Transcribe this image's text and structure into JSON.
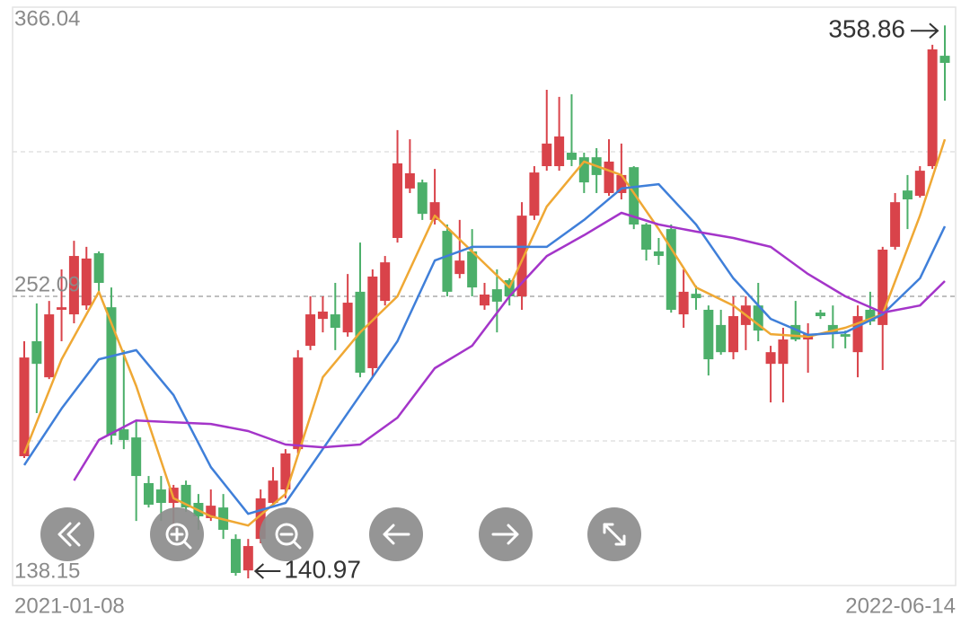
{
  "chart_data": {
    "type": "candlestick",
    "yticks": [
      138.15,
      252.09,
      366.04
    ],
    "minor_grid": [
      195.12,
      309.06
    ],
    "ylim": [
      138.15,
      366.04
    ],
    "up_color": "#d9434a",
    "down_color": "#4caf6a",
    "categories": [
      "2021-01-08",
      null,
      null,
      null,
      null,
      null,
      null,
      null,
      null,
      null,
      null,
      null,
      null,
      null,
      null,
      null,
      null,
      null,
      null,
      null,
      null,
      null,
      null,
      null,
      null,
      null,
      null,
      null,
      null,
      null,
      null,
      null,
      null,
      null,
      null,
      null,
      null,
      null,
      null,
      null,
      null,
      null,
      null,
      null,
      null,
      null,
      null,
      null,
      null,
      null,
      null,
      null,
      null,
      null,
      null,
      null,
      null,
      null,
      null,
      null,
      null,
      null,
      null,
      null,
      null,
      null,
      null,
      null,
      null,
      null,
      null,
      null,
      null,
      null,
      "2022-06-14"
    ],
    "ohlc": [
      [
        189.1,
        234.4,
        188.4,
        228.0
      ],
      [
        234.4,
        249.3,
        206.1,
        225.5
      ],
      [
        220.2,
        250.3,
        219.5,
        245.0
      ],
      [
        246.8,
        262.7,
        234.4,
        247.8
      ],
      [
        245.0,
        274.0,
        241.5,
        268.0
      ],
      [
        248.5,
        271.6,
        246.8,
        267.0
      ],
      [
        269.1,
        269.8,
        253.9,
        257.4
      ],
      [
        247.8,
        255.6,
        193.7,
        197.2
      ],
      [
        199.7,
        230.9,
        191.9,
        195.5
      ],
      [
        196.5,
        203.2,
        163.6,
        181.3
      ],
      [
        178.5,
        181.3,
        168.9,
        170.0
      ],
      [
        176.0,
        181.3,
        163.6,
        170.7
      ],
      [
        170.7,
        177.8,
        160.1,
        176.7
      ],
      [
        177.8,
        179.5,
        167.2,
        168.9
      ],
      [
        170.7,
        174.2,
        160.1,
        165.4
      ],
      [
        164.7,
        176.0,
        163.6,
        169.6
      ],
      [
        168.9,
        174.2,
        156.5,
        160.1
      ],
      [
        156.5,
        158.3,
        142.0,
        143.1
      ],
      [
        144.1,
        156.5,
        140.97,
        153.7
      ],
      [
        156.5,
        176.0,
        154.8,
        172.5
      ],
      [
        170.7,
        184.8,
        168.9,
        179.5
      ],
      [
        176.0,
        191.9,
        172.5,
        190.2
      ],
      [
        191.9,
        230.9,
        190.2,
        228.0
      ],
      [
        232.6,
        252.1,
        230.9,
        245.0
      ],
      [
        243.2,
        252.1,
        237.9,
        246.1
      ],
      [
        245.0,
        257.4,
        230.9,
        239.7
      ],
      [
        237.9,
        260.9,
        236.2,
        249.6
      ],
      [
        253.9,
        273.3,
        220.2,
        222.0
      ],
      [
        223.8,
        262.7,
        220.2,
        259.9
      ],
      [
        250.3,
        268.0,
        248.5,
        265.5
      ],
      [
        275.1,
        317.6,
        273.3,
        304.5
      ],
      [
        294.6,
        314.0,
        292.8,
        300.6
      ],
      [
        297.0,
        298.1,
        282.2,
        284.6
      ],
      [
        282.2,
        302.3,
        280.4,
        289.2
      ],
      [
        277.9,
        280.4,
        252.1,
        253.9
      ],
      [
        260.9,
        282.2,
        259.2,
        266.2
      ],
      [
        269.8,
        278.6,
        252.1,
        255.6
      ],
      [
        248.5,
        257.4,
        246.8,
        252.8
      ],
      [
        254.9,
        262.7,
        237.9,
        250.0
      ],
      [
        258.5,
        259.2,
        248.5,
        252.1
      ],
      [
        252.1,
        289.2,
        246.8,
        283.9
      ],
      [
        283.9,
        303.4,
        282.2,
        300.9
      ],
      [
        303.4,
        333.5,
        301.6,
        312.3
      ],
      [
        303.4,
        330.7,
        301.6,
        315.1
      ],
      [
        308.7,
        331.7,
        303.4,
        305.9
      ],
      [
        306.9,
        308.7,
        292.8,
        297.0
      ],
      [
        306.9,
        310.5,
        292.8,
        299.9
      ],
      [
        292.8,
        314.0,
        291.7,
        305.2
      ],
      [
        292.8,
        312.3,
        290.3,
        299.9
      ],
      [
        303.0,
        303.4,
        278.6,
        280.4
      ],
      [
        280.4,
        281.0,
        266.2,
        270.5
      ],
      [
        269.8,
        275.1,
        264.5,
        268.0
      ],
      [
        278.6,
        280.4,
        245.7,
        246.8
      ],
      [
        245.0,
        262.7,
        239.7,
        253.9
      ],
      [
        253.1,
        256.3,
        246.8,
        251.4
      ],
      [
        246.8,
        248.5,
        220.9,
        227.3
      ],
      [
        240.8,
        246.8,
        229.1,
        230.1
      ],
      [
        230.1,
        252.1,
        227.3,
        244.3
      ],
      [
        240.8,
        252.1,
        230.9,
        248.5
      ],
      [
        248.5,
        257.4,
        234.4,
        238.6
      ],
      [
        225.5,
        232.6,
        210.3,
        230.1
      ],
      [
        225.5,
        239.7,
        210.3,
        235.1
      ],
      [
        240.8,
        250.3,
        234.4,
        235.1
      ],
      [
        235.1,
        241.5,
        222.0,
        237.2
      ],
      [
        245.7,
        246.8,
        243.2,
        244.3
      ],
      [
        240.8,
        248.5,
        231.6,
        237.2
      ],
      [
        237.2,
        238.6,
        231.6,
        236.2
      ],
      [
        230.1,
        248.5,
        220.2,
        244.3
      ],
      [
        246.8,
        253.9,
        240.8,
        242.2
      ],
      [
        240.8,
        271.6,
        223.1,
        270.5
      ],
      [
        271.6,
        292.8,
        270.5,
        289.2
      ],
      [
        293.8,
        299.9,
        278.6,
        290.3
      ],
      [
        291.7,
        303.4,
        291.0,
        301.6
      ],
      [
        303.4,
        351.2,
        302.3,
        349.4
      ],
      [
        346.9,
        358.86,
        329.2,
        344.1
      ]
    ],
    "lines": [
      {
        "color": "#efa834",
        "x": [
          0,
          3,
          6,
          9,
          12,
          15,
          18,
          21,
          24,
          27,
          30,
          33,
          36,
          39,
          42,
          45,
          48,
          51,
          54,
          57,
          60,
          63,
          66,
          69,
          72,
          74
        ],
        "values": [
          190.2,
          227.3,
          253.9,
          216.7,
          172.5,
          165.4,
          161.8,
          174.2,
          220.2,
          237.9,
          252.1,
          283.9,
          269.8,
          255.6,
          287.5,
          305.2,
          299.9,
          278.6,
          255.6,
          248.5,
          237.2,
          236.2,
          239.7,
          245.0,
          283.9,
          314.0
        ]
      },
      {
        "color": "#3f7fd9",
        "x": [
          0,
          3,
          6,
          9,
          12,
          15,
          18,
          21,
          24,
          27,
          30,
          33,
          36,
          39,
          42,
          45,
          48,
          51,
          54,
          57,
          60,
          63,
          66,
          69,
          72,
          74
        ],
        "values": [
          185.6,
          207.9,
          227.3,
          230.9,
          213.2,
          184.8,
          166.4,
          170.7,
          191.9,
          213.2,
          234.4,
          266.2,
          271.6,
          271.6,
          271.6,
          282.2,
          294.6,
          296.3,
          280.4,
          259.2,
          243.2,
          236.9,
          237.9,
          245.0,
          259.2,
          279.7
        ]
      },
      {
        "color": "#a435c9",
        "x": [
          4,
          6,
          9,
          12,
          15,
          18,
          21,
          24,
          27,
          30,
          33,
          36,
          39,
          42,
          45,
          48,
          51,
          54,
          57,
          60,
          63,
          66,
          69,
          72,
          74
        ],
        "values": [
          179.5,
          195.5,
          203.2,
          202.5,
          201.8,
          199.0,
          193.7,
          192.6,
          193.7,
          204.3,
          223.8,
          232.6,
          252.1,
          268.0,
          276.2,
          285.0,
          280.4,
          277.6,
          275.1,
          271.6,
          260.9,
          252.1,
          245.7,
          248.5,
          258.1
        ]
      }
    ]
  }
}
